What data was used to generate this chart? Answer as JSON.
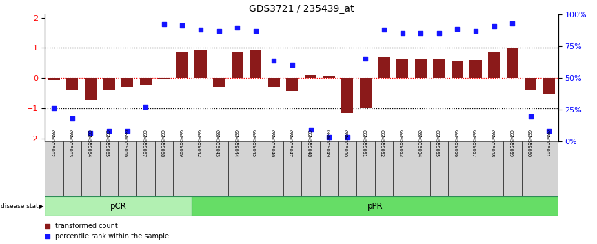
{
  "title": "GDS3721 / 235439_at",
  "samples": [
    "GSM559062",
    "GSM559063",
    "GSM559064",
    "GSM559065",
    "GSM559066",
    "GSM559067",
    "GSM559068",
    "GSM559069",
    "GSM559042",
    "GSM559043",
    "GSM559044",
    "GSM559045",
    "GSM559046",
    "GSM559047",
    "GSM559048",
    "GSM559049",
    "GSM559050",
    "GSM559051",
    "GSM559052",
    "GSM559053",
    "GSM559054",
    "GSM559055",
    "GSM559056",
    "GSM559057",
    "GSM559058",
    "GSM559059",
    "GSM559060",
    "GSM559061"
  ],
  "bar_values": [
    -0.07,
    -0.38,
    -0.72,
    -0.38,
    -0.28,
    -0.22,
    -0.05,
    0.88,
    0.92,
    -0.28,
    0.85,
    0.92,
    -0.28,
    -0.42,
    0.1,
    0.07,
    -1.15,
    -1.0,
    0.68,
    0.62,
    0.65,
    0.63,
    0.58,
    0.6,
    0.88,
    1.02,
    -0.38,
    -0.55
  ],
  "percentile_values": [
    -1.0,
    -1.35,
    -1.82,
    -1.75,
    -1.75,
    -0.95,
    1.78,
    1.75,
    1.6,
    1.55,
    1.68,
    1.55,
    0.58,
    0.45,
    -1.7,
    -1.95,
    -1.95,
    0.65,
    1.6,
    1.48,
    1.5,
    1.48,
    1.62,
    1.55,
    1.72,
    1.82,
    -1.28,
    -1.75
  ],
  "bar_color": "#8B1A1A",
  "dot_color": "#1515FF",
  "n_pCR": 8,
  "n_pPR": 20,
  "ylim": [
    -2.1,
    2.1
  ],
  "yticks_left": [
    -2,
    -1,
    0,
    1,
    2
  ],
  "yticks_right": [
    0,
    25,
    50,
    75,
    100
  ],
  "background_color": "#FFFFFF",
  "green_light": "#90EE90",
  "green_dark": "#3CB371"
}
